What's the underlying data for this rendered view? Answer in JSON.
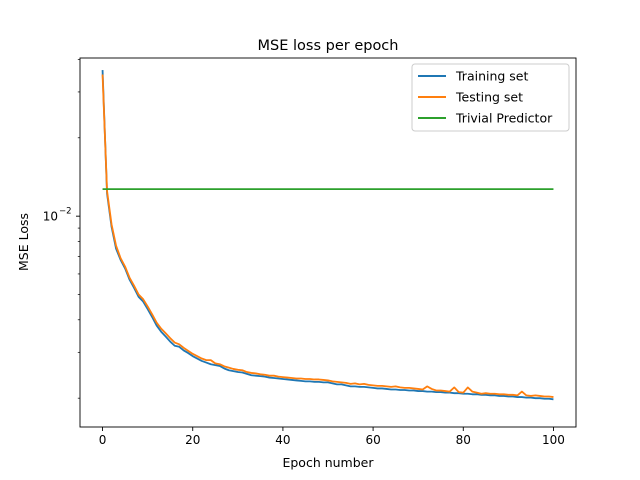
{
  "chart_data": {
    "type": "line",
    "title": "MSE loss per epoch",
    "xlabel": "Epoch number",
    "ylabel": "MSE Loss",
    "yscale": "log",
    "xlim": [
      -5,
      105
    ],
    "ylim": [
      0.00155,
      0.0405
    ],
    "xticks": [
      0,
      20,
      40,
      60,
      80,
      100
    ],
    "yticks": [
      {
        "value": 0.01,
        "base": "10",
        "exp": "−2"
      }
    ],
    "grid": false,
    "legend": {
      "position": "top-right"
    },
    "x": [
      0,
      1,
      2,
      3,
      4,
      5,
      6,
      7,
      8,
      9,
      10,
      11,
      12,
      13,
      14,
      15,
      16,
      17,
      18,
      19,
      20,
      21,
      22,
      23,
      24,
      25,
      26,
      27,
      28,
      29,
      30,
      31,
      32,
      33,
      34,
      35,
      36,
      37,
      38,
      39,
      40,
      41,
      42,
      43,
      44,
      45,
      46,
      47,
      48,
      49,
      50,
      51,
      52,
      53,
      54,
      55,
      56,
      57,
      58,
      59,
      60,
      61,
      62,
      63,
      64,
      65,
      66,
      67,
      68,
      69,
      70,
      71,
      72,
      73,
      74,
      75,
      76,
      77,
      78,
      79,
      80,
      81,
      82,
      83,
      84,
      85,
      86,
      87,
      88,
      89,
      90,
      91,
      92,
      93,
      94,
      95,
      96,
      97,
      98,
      99,
      100
    ],
    "series": [
      {
        "name": "Training set",
        "color": "#1f77b4",
        "values": [
          0.0364,
          0.0122,
          0.0091,
          0.0075,
          0.0068,
          0.0063,
          0.0057,
          0.0053,
          0.0049,
          0.0047,
          0.0044,
          0.0041,
          0.0038,
          0.0036,
          0.00345,
          0.0033,
          0.00318,
          0.00315,
          0.00305,
          0.00298,
          0.0029,
          0.00284,
          0.00278,
          0.00274,
          0.0027,
          0.00268,
          0.00266,
          0.0026,
          0.00256,
          0.00254,
          0.00252,
          0.00251,
          0.00248,
          0.00245,
          0.00244,
          0.00243,
          0.00242,
          0.0024,
          0.00239,
          0.00238,
          0.00237,
          0.00236,
          0.00235,
          0.00234,
          0.00233,
          0.00232,
          0.00232,
          0.00231,
          0.00231,
          0.0023,
          0.0023,
          0.00228,
          0.00226,
          0.00226,
          0.00224,
          0.00222,
          0.00222,
          0.00221,
          0.00221,
          0.0022,
          0.00219,
          0.00218,
          0.00218,
          0.00217,
          0.00216,
          0.00216,
          0.00215,
          0.00215,
          0.00214,
          0.00214,
          0.00213,
          0.00213,
          0.00212,
          0.00212,
          0.00211,
          0.00211,
          0.0021,
          0.0021,
          0.00209,
          0.00209,
          0.00208,
          0.00208,
          0.00207,
          0.00207,
          0.00206,
          0.00206,
          0.00205,
          0.00205,
          0.00204,
          0.00204,
          0.00203,
          0.00203,
          0.00202,
          0.00202,
          0.00201,
          0.00201,
          0.002,
          0.002,
          0.00199,
          0.00199,
          0.00198
        ]
      },
      {
        "name": "Testing set",
        "color": "#ff7f0e",
        "values": [
          0.035,
          0.0125,
          0.0093,
          0.0077,
          0.0069,
          0.0064,
          0.0058,
          0.0054,
          0.005,
          0.0048,
          0.0045,
          0.0042,
          0.0039,
          0.0037,
          0.00355,
          0.0034,
          0.00327,
          0.00322,
          0.00312,
          0.00304,
          0.00296,
          0.0029,
          0.00284,
          0.0028,
          0.0028,
          0.00272,
          0.0027,
          0.00265,
          0.00262,
          0.00259,
          0.00257,
          0.00256,
          0.00252,
          0.0025,
          0.00249,
          0.00247,
          0.00246,
          0.00244,
          0.00244,
          0.00242,
          0.00241,
          0.0024,
          0.00239,
          0.00238,
          0.00238,
          0.00237,
          0.00237,
          0.00236,
          0.00236,
          0.00235,
          0.00234,
          0.00232,
          0.00231,
          0.0023,
          0.00229,
          0.00227,
          0.00228,
          0.00226,
          0.00227,
          0.00225,
          0.00224,
          0.00223,
          0.00223,
          0.00222,
          0.00221,
          0.00222,
          0.0022,
          0.00219,
          0.00219,
          0.00218,
          0.00217,
          0.00216,
          0.00222,
          0.00217,
          0.00214,
          0.00214,
          0.00213,
          0.00212,
          0.0022,
          0.00211,
          0.0021,
          0.0022,
          0.00212,
          0.0021,
          0.00208,
          0.00209,
          0.00208,
          0.00208,
          0.00207,
          0.00207,
          0.00206,
          0.00206,
          0.00205,
          0.00212,
          0.00205,
          0.00204,
          0.00205,
          0.00204,
          0.00203,
          0.00203,
          0.00202
        ]
      },
      {
        "name": "Trivial Predictor",
        "color": "#2ca02c",
        "values": [
          0.0127,
          0.0127
        ],
        "x": [
          0,
          100
        ]
      }
    ]
  }
}
